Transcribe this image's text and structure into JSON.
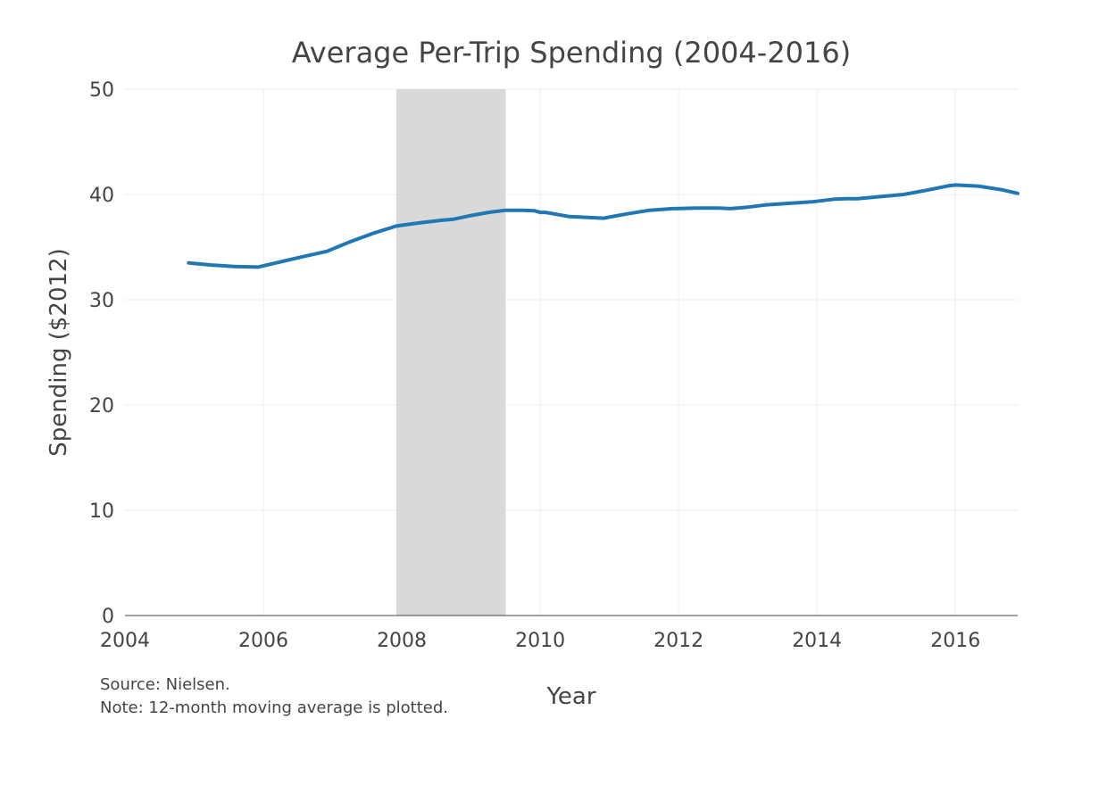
{
  "chart_data": {
    "type": "line",
    "title": "Average Per-Trip Spending (2004-2016)",
    "xlabel": "Year",
    "ylabel": "Spending ($2012)",
    "xlim": [
      2004,
      2016.9
    ],
    "ylim": [
      0,
      50
    ],
    "x_ticks": [
      "2004",
      "2006",
      "2008",
      "2010",
      "2012",
      "2014",
      "2016"
    ],
    "y_ticks": [
      "0",
      "10",
      "20",
      "30",
      "40",
      "50"
    ],
    "grid": true,
    "legend": "none",
    "shaded_region": {
      "x_start": 2007.92,
      "x_end": 2009.5,
      "color": "#d9d9d9"
    },
    "series": [
      {
        "color": "#1f77b4",
        "x": [
          2004.92,
          2005.25,
          2005.58,
          2005.92,
          2006.25,
          2006.58,
          2006.92,
          2007.25,
          2007.58,
          2007.92,
          2008.25,
          2008.58,
          2008.75,
          2009.0,
          2009.25,
          2009.5,
          2009.75,
          2009.92,
          2010.0,
          2010.08,
          2010.42,
          2010.75,
          2010.92,
          2011.0,
          2011.25,
          2011.58,
          2011.92,
          2012.25,
          2012.58,
          2012.75,
          2013.0,
          2013.25,
          2013.58,
          2013.92,
          2014.25,
          2014.42,
          2014.58,
          2014.92,
          2015.25,
          2015.58,
          2015.92,
          2016.0,
          2016.33,
          2016.67,
          2016.9
        ],
        "values": [
          33.5,
          33.3,
          33.15,
          33.1,
          33.6,
          34.1,
          34.6,
          35.5,
          36.3,
          37.0,
          37.3,
          37.55,
          37.65,
          38.0,
          38.3,
          38.5,
          38.5,
          38.45,
          38.3,
          38.3,
          37.9,
          37.8,
          37.75,
          37.85,
          38.15,
          38.5,
          38.65,
          38.7,
          38.7,
          38.65,
          38.8,
          39.0,
          39.15,
          39.3,
          39.55,
          39.6,
          39.6,
          39.8,
          40.0,
          40.4,
          40.85,
          40.9,
          40.8,
          40.45,
          40.1
        ]
      }
    ],
    "annotations": [
      "Source: Nielsen.",
      "Note: 12-month moving average is plotted."
    ]
  }
}
